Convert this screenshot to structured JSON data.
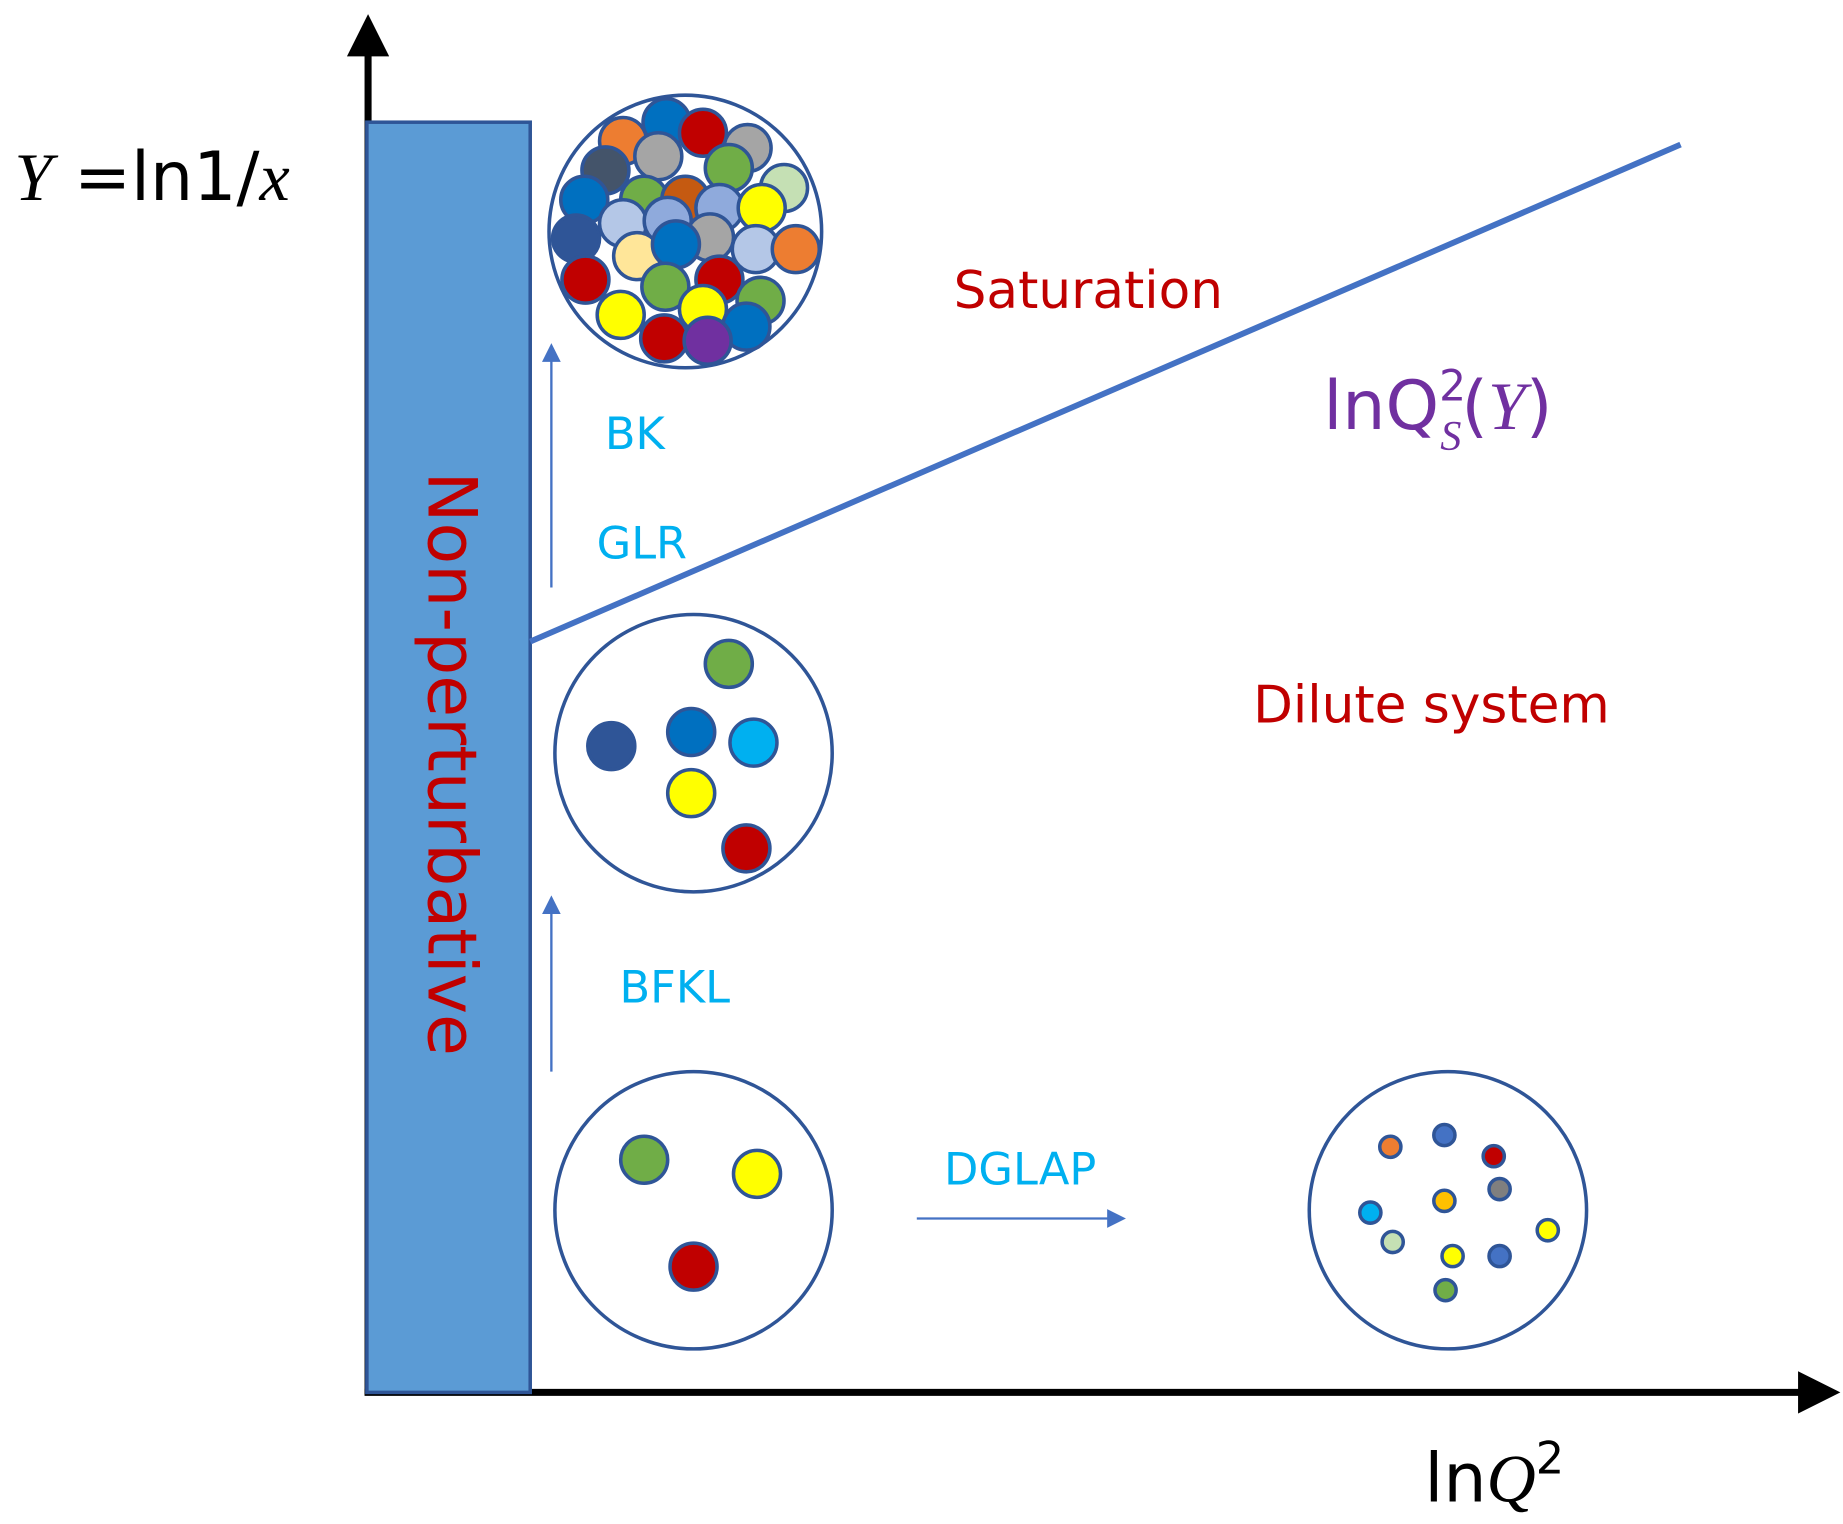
{
  "y_axis_label": {
    "symbol": "Y",
    "expression": " =ln1/",
    "variable": "x"
  },
  "x_axis_label": {
    "prefix": "ln",
    "symbol": "Q",
    "exponent": "2"
  },
  "region_labels": {
    "non_perturbative": "Non-perturbative",
    "saturation": "Saturation",
    "dilute": "Dilute system"
  },
  "saturation_scale_label": {
    "prefix": "lnQ",
    "exponent": "2",
    "subscript": "S",
    "open": "(",
    "argument": "Y",
    "close": ")"
  },
  "evolution_labels": {
    "bk": "BK",
    "glr": "GLR",
    "bfkl": "BFKL",
    "dglap": "DGLAP"
  }
}
